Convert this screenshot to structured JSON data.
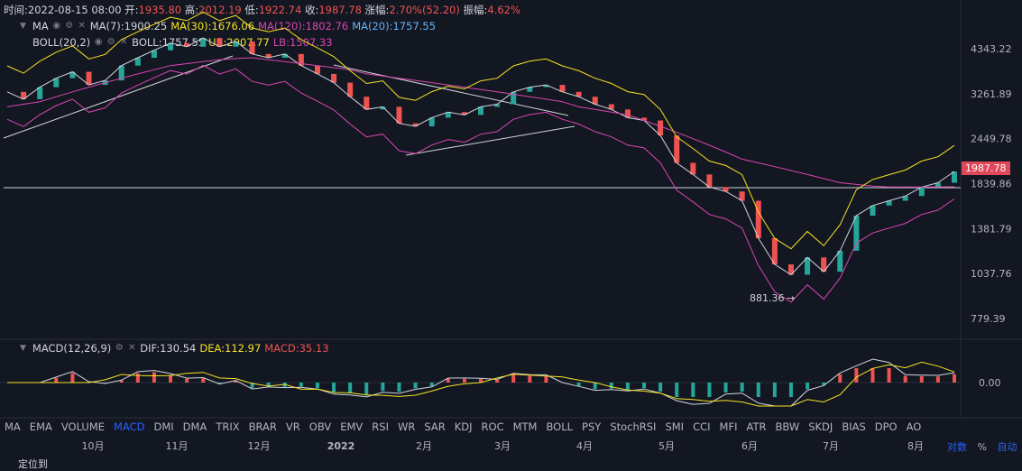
{
  "header": {
    "time_label": "时间:",
    "time_value": "2022-08-15 08:00",
    "open_label": "开:",
    "open_value": "1935.80",
    "high_label": "高:",
    "high_value": "2012.19",
    "low_label": "低:",
    "low_value": "1922.74",
    "close_label": "收:",
    "close_value": "1987.78",
    "change_label": "涨幅:",
    "change_value": "2.70%(52.20)",
    "amp_label": "振幅:",
    "amp_value": "4.62%"
  },
  "ma_row": {
    "name": "MA",
    "ma7": "MA(7):1900.25",
    "ma30": "MA(30):1676.06",
    "ma120": "MA(120):1802.76",
    "ma20": "MA(20):1757.55"
  },
  "boll_row": {
    "name": "BOLL(20,2)",
    "boll": "BOLL:1757.55",
    "ub": "UB:2007.77",
    "lb": "LB:1507.33"
  },
  "macd_row": {
    "name": "MACD(12,26,9)",
    "dif": "DIF:130.54",
    "dea": "DEA:112.97",
    "macd": "MACD:35.13"
  },
  "colors": {
    "up": "#26a69a",
    "down": "#ef5350",
    "ma7": "#d1d4dc",
    "ma30": "#f5e322",
    "ma120": "#d946b0",
    "ma20": "#64b5f6",
    "boll_band": "#f5e322",
    "boll_lb": "#d946b0"
  },
  "chart_data": {
    "type": "line",
    "price_axis_ticks": [
      "4343.22",
      "3261.89",
      "2449.78",
      "1839.86",
      "1381.79",
      "1037.76",
      "779.39"
    ],
    "price_axis_values": [
      4343.22,
      3261.89,
      2449.78,
      1839.86,
      1381.79,
      1037.76,
      779.39
    ],
    "scale": "log",
    "current_price": "1987.78",
    "annotation_low": "881.36",
    "macd_axis_tick": "0.00",
    "x_ticks": [
      "10月",
      "11月",
      "12月",
      "2022",
      "2月",
      "3月",
      "4月",
      "5月",
      "6月",
      "7月",
      "8月"
    ],
    "close_series": [
      3300,
      3150,
      3400,
      3600,
      3750,
      3450,
      3550,
      3900,
      4100,
      4300,
      4500,
      4400,
      4650,
      4400,
      4550,
      4200,
      4100,
      4200,
      3900,
      3700,
      3500,
      3200,
      2950,
      3000,
      2700,
      2650,
      2800,
      2900,
      2850,
      3000,
      3050,
      3300,
      3400,
      3450,
      3300,
      3200,
      3050,
      2950,
      2800,
      2750,
      2500,
      2100,
      1950,
      1800,
      1750,
      1650,
      1300,
      1100,
      1030,
      1150,
      1050,
      1200,
      1500,
      1600,
      1650,
      1700,
      1800,
      1850,
      1987.78
    ],
    "ma120_series": [
      3000,
      3050,
      3100,
      3200,
      3300,
      3400,
      3500,
      3600,
      3700,
      3800,
      3900,
      3950,
      4000,
      4050,
      4080,
      4100,
      4050,
      4000,
      3950,
      3900,
      3850,
      3800,
      3700,
      3650,
      3600,
      3550,
      3500,
      3450,
      3400,
      3350,
      3300,
      3250,
      3200,
      3150,
      3100,
      3000,
      2950,
      2900,
      2850,
      2750,
      2650,
      2550,
      2450,
      2350,
      2250,
      2150,
      2100,
      2050,
      2000,
      1950,
      1900,
      1850,
      1830,
      1810,
      1800,
      1800,
      1800,
      1802,
      1802.76
    ]
  },
  "bottom_tabs": [
    "MA",
    "EMA",
    "VOLUME",
    "MACD",
    "DMI",
    "DMA",
    "TRIX",
    "BRAR",
    "VR",
    "OBV",
    "EMV",
    "RSI",
    "WR",
    "SAR",
    "KDJ",
    "ROC",
    "MTM",
    "BOLL",
    "PSY",
    "StochRSI",
    "SMI",
    "CCI",
    "MFI",
    "ATR",
    "BBW",
    "SKDJ",
    "BIAS",
    "DPO",
    "AO"
  ],
  "active_tab": "MACD",
  "scale_buttons": {
    "log": "对数",
    "percent": "%",
    "auto": "自动"
  },
  "footer_label": "定位到"
}
